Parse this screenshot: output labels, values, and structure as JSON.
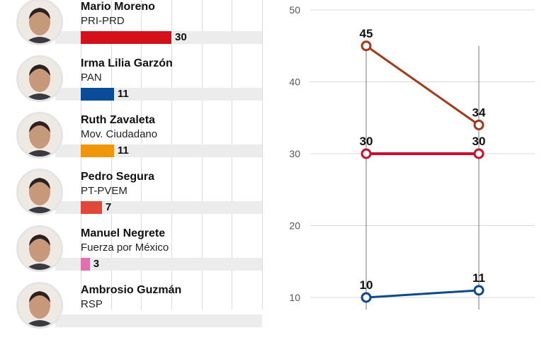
{
  "chart_data": [
    {
      "type": "bar",
      "orientation": "horizontal",
      "xlim": [
        0,
        60
      ],
      "grid": true,
      "categories": [
        "Mario Moreno",
        "Irma Lilia Garzón",
        "Ruth Zavaleta",
        "Pedro Segura",
        "Manuel Negrete",
        "Ambrosio Guzmán"
      ],
      "candidates": [
        {
          "name": "Mario Moreno",
          "party": "PRI-PRD",
          "value": 30,
          "value_label": "30",
          "color": "#d4111a"
        },
        {
          "name": "Irma Lilia Garzón",
          "party": "PAN",
          "value": 11,
          "value_label": "11",
          "color": "#0b4c9a"
        },
        {
          "name": "Ruth Zavaleta",
          "party": "Mov. Ciudadano",
          "value": 11,
          "value_label": "11",
          "color": "#f0960a"
        },
        {
          "name": "Pedro Segura",
          "party": "PT-PVEM",
          "value": 7,
          "value_label": "7",
          "color": "#e0483a"
        },
        {
          "name": "Manuel Negrete",
          "party": "Fuerza por México",
          "value": 3,
          "value_label": "3",
          "color": "#e070b0"
        },
        {
          "name": "Ambrosio Guzmán",
          "party": "RSP",
          "value": null,
          "value_label": null,
          "color": "#999999"
        }
      ]
    },
    {
      "type": "line",
      "ylim": [
        8,
        52
      ],
      "yticks": [
        "10",
        "20",
        "30",
        "40",
        "50"
      ],
      "ytick_values": [
        10,
        20,
        30,
        40,
        50
      ],
      "grid": true,
      "x": [
        0,
        1
      ],
      "series": [
        {
          "values": [
            45,
            34
          ],
          "labels": [
            "45",
            "34"
          ],
          "color": "#a33a1a"
        },
        {
          "values": [
            30,
            30
          ],
          "labels": [
            "30",
            "30"
          ],
          "color": "#c8102e"
        },
        {
          "values": [
            10,
            11
          ],
          "labels": [
            "10",
            "11"
          ],
          "color": "#0d4a8c"
        }
      ]
    }
  ]
}
